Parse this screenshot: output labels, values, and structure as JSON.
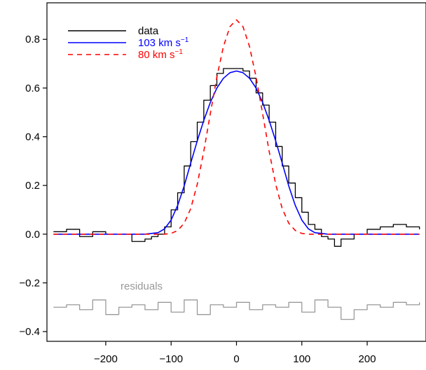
{
  "chart_data": {
    "type": "line",
    "xlim": [
      -290,
      290
    ],
    "ylim": [
      -0.44,
      0.95
    ],
    "x_ticks": [
      -200,
      -100,
      0,
      100,
      200
    ],
    "x_tick_labels": [
      "−200",
      "−100",
      "0",
      "100",
      "200"
    ],
    "y_ticks": [
      -0.4,
      -0.2,
      0.0,
      0.2,
      0.4,
      0.6,
      0.8
    ],
    "y_tick_labels": [
      "−0.4",
      "−0.2",
      "0.0",
      "0.2",
      "0.4",
      "0.6",
      "0.8"
    ],
    "grid": false,
    "legend_position": "top-left",
    "legend": [
      {
        "key": "data",
        "label": "data",
        "sup": "",
        "color": "#000000",
        "dash": "solid"
      },
      {
        "key": "fit103",
        "label": "103 km s",
        "sup": "−1",
        "color": "#0000ff",
        "dash": "solid"
      },
      {
        "key": "fit80",
        "label": "80 km s",
        "sup": "−1",
        "color": "#ff0000",
        "dash": "dashed"
      }
    ],
    "annotation": {
      "label": "residuals",
      "color": "#999999"
    },
    "series": [
      {
        "key": "data",
        "color": "#000000",
        "style": "step",
        "x": [
          -280,
          -260,
          -240,
          -220,
          -200,
          -180,
          -160,
          -140,
          -130,
          -120,
          -110,
          -100,
          -90,
          -80,
          -70,
          -60,
          -50,
          -40,
          -30,
          -20,
          -10,
          0,
          10,
          20,
          30,
          40,
          50,
          60,
          70,
          80,
          90,
          100,
          110,
          120,
          130,
          140,
          150,
          160,
          180,
          200,
          220,
          240,
          260,
          280
        ],
        "y": [
          0.01,
          0.02,
          -0.01,
          0.01,
          0.0,
          0.0,
          -0.03,
          -0.02,
          -0.01,
          0.0,
          0.03,
          0.1,
          0.17,
          0.28,
          0.38,
          0.46,
          0.55,
          0.61,
          0.66,
          0.68,
          0.68,
          0.68,
          0.67,
          0.64,
          0.58,
          0.53,
          0.46,
          0.36,
          0.28,
          0.21,
          0.15,
          0.09,
          0.04,
          0.02,
          -0.01,
          -0.02,
          -0.05,
          -0.02,
          0.0,
          0.02,
          0.03,
          0.04,
          0.03,
          0.02
        ]
      },
      {
        "key": "fit103",
        "color": "#0000ff",
        "style": "line",
        "x": [
          -280,
          -140,
          -120,
          -110,
          -100,
          -90,
          -80,
          -70,
          -60,
          -50,
          -40,
          -30,
          -20,
          -10,
          0,
          10,
          20,
          30,
          40,
          50,
          60,
          70,
          80,
          90,
          100,
          110,
          120,
          140,
          280
        ],
        "y": [
          0.0,
          0.0,
          0.006,
          0.022,
          0.058,
          0.118,
          0.198,
          0.292,
          0.383,
          0.467,
          0.541,
          0.6,
          0.64,
          0.663,
          0.67,
          0.663,
          0.64,
          0.6,
          0.541,
          0.467,
          0.383,
          0.292,
          0.198,
          0.118,
          0.058,
          0.022,
          0.006,
          0.0,
          0.0
        ]
      },
      {
        "key": "fit80",
        "color": "#ff0000",
        "style": "line",
        "x": [
          -280,
          -110,
          -100,
          -90,
          -80,
          -70,
          -60,
          -50,
          -40,
          -30,
          -20,
          -10,
          0,
          10,
          20,
          30,
          40,
          50,
          60,
          70,
          80,
          90,
          100,
          110,
          280
        ],
        "y": [
          0.0,
          0.0,
          0.003,
          0.015,
          0.045,
          0.105,
          0.205,
          0.34,
          0.495,
          0.645,
          0.77,
          0.852,
          0.88,
          0.852,
          0.77,
          0.645,
          0.495,
          0.34,
          0.205,
          0.105,
          0.045,
          0.015,
          0.003,
          0.0,
          0.0
        ]
      },
      {
        "key": "residuals",
        "color": "#999999",
        "style": "step",
        "x": [
          -280,
          -260,
          -240,
          -220,
          -200,
          -180,
          -160,
          -140,
          -120,
          -100,
          -80,
          -60,
          -40,
          -20,
          0,
          20,
          40,
          60,
          80,
          100,
          120,
          140,
          160,
          180,
          200,
          220,
          240,
          260,
          280
        ],
        "y": [
          -0.3,
          -0.29,
          -0.31,
          -0.27,
          -0.33,
          -0.3,
          -0.29,
          -0.31,
          -0.28,
          -0.32,
          -0.27,
          -0.33,
          -0.29,
          -0.3,
          -0.28,
          -0.31,
          -0.29,
          -0.3,
          -0.28,
          -0.32,
          -0.27,
          -0.3,
          -0.35,
          -0.31,
          -0.29,
          -0.3,
          -0.28,
          -0.29,
          -0.28
        ]
      }
    ]
  }
}
